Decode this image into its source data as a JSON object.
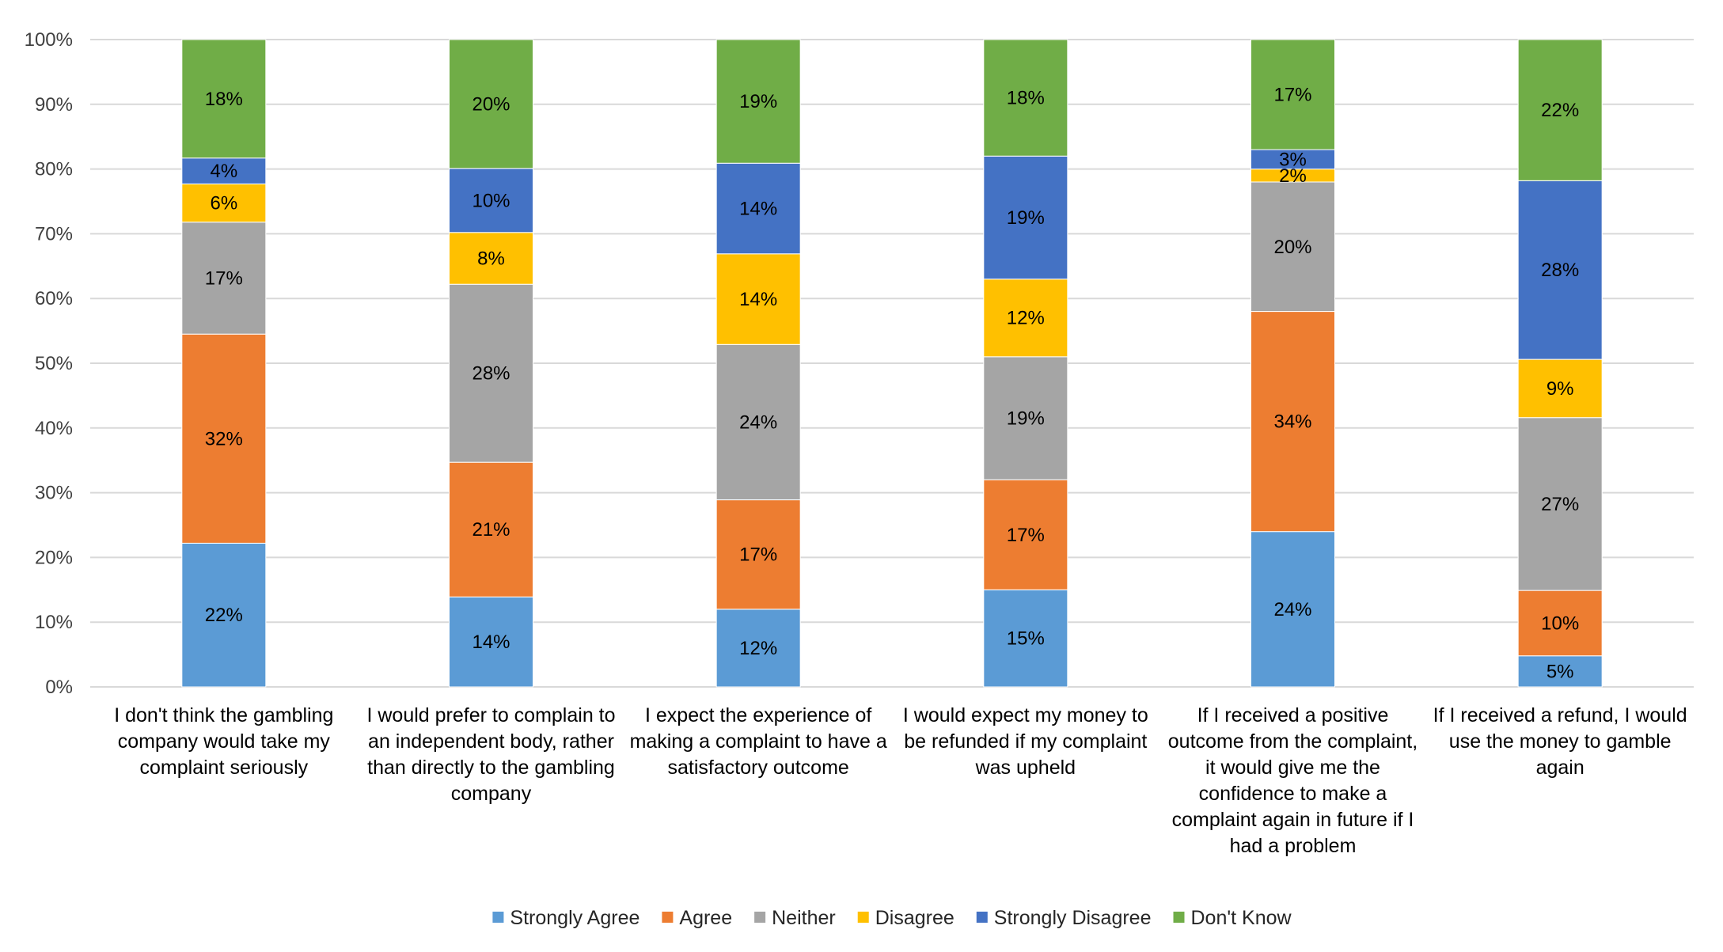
{
  "chart_data": {
    "type": "stacked-bar-100",
    "title": "",
    "xlabel": "",
    "ylabel": "",
    "ylim": [
      0,
      100
    ],
    "grid": true,
    "legend": "bottom",
    "y_ticks": [
      "0%",
      "10%",
      "20%",
      "30%",
      "40%",
      "50%",
      "60%",
      "70%",
      "80%",
      "90%",
      "100%"
    ],
    "categories": [
      [
        "I don't think the gambling",
        "company would take my",
        "complaint seriously"
      ],
      [
        "I would prefer to complain to",
        "an independent body, rather",
        "than directly to the gambling",
        "company"
      ],
      [
        "I expect the experience of",
        "making a complaint to have a",
        "satisfactory outcome"
      ],
      [
        "I would expect my money to",
        "be refunded if my complaint",
        "was upheld"
      ],
      [
        "If I received a positive",
        "outcome from the complaint,",
        "it would give me the",
        "confidence to make a",
        "complaint again in future if I",
        "had a problem"
      ],
      [
        "If I received a refund, I would",
        "use the money to gamble",
        "again"
      ]
    ],
    "series": [
      {
        "name": "Strongly Agree",
        "color": "#5B9BD5",
        "values": [
          22.2,
          13.9,
          12.0,
          15.0,
          24.0,
          4.8
        ],
        "labels": [
          "22%",
          "14%",
          "12%",
          "15%",
          "24%",
          "5%"
        ]
      },
      {
        "name": "Agree",
        "color": "#ED7D31",
        "values": [
          32.3,
          20.8,
          16.9,
          17.0,
          34.0,
          10.1
        ],
        "labels": [
          "32%",
          "21%",
          "17%",
          "17%",
          "34%",
          "10%"
        ]
      },
      {
        "name": "Neither",
        "color": "#A5A5A5",
        "values": [
          17.3,
          27.5,
          24.0,
          19.0,
          20.0,
          26.7
        ],
        "labels": [
          "17%",
          "28%",
          "24%",
          "19%",
          "20%",
          "27%"
        ]
      },
      {
        "name": "Disagree",
        "color": "#FFC000",
        "values": [
          5.9,
          8.0,
          14.0,
          12.0,
          2.0,
          9.0
        ],
        "labels": [
          "6%",
          "8%",
          "14%",
          "12%",
          "2%",
          "9%"
        ]
      },
      {
        "name": "Strongly Disagree",
        "color": "#4472C4",
        "values": [
          4.0,
          9.9,
          14.0,
          19.0,
          3.0,
          27.6
        ],
        "labels": [
          "4%",
          "10%",
          "14%",
          "19%",
          "3%",
          "28%"
        ]
      },
      {
        "name": "Don't Know",
        "color": "#70AD47",
        "values": [
          18.3,
          19.9,
          19.1,
          18.0,
          17.0,
          21.8
        ],
        "labels": [
          "18%",
          "20%",
          "19%",
          "18%",
          "17%",
          "22%"
        ]
      }
    ]
  }
}
